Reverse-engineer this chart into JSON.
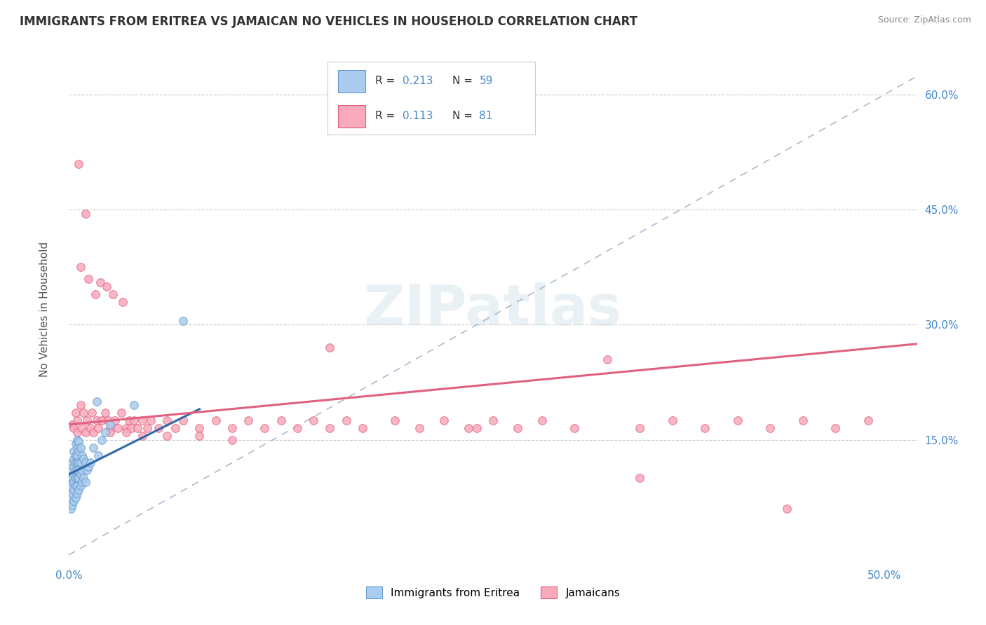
{
  "title": "IMMIGRANTS FROM ERITREA VS JAMAICAN NO VEHICLES IN HOUSEHOLD CORRELATION CHART",
  "source": "Source: ZipAtlas.com",
  "ylabel": "No Vehicles in Household",
  "xlim": [
    0.0,
    0.52
  ],
  "ylim": [
    -0.01,
    0.65
  ],
  "xticks": [
    0.0,
    0.1,
    0.2,
    0.3,
    0.4,
    0.5
  ],
  "xtick_labels": [
    "0.0%",
    "",
    "",
    "",
    "",
    "50.0%"
  ],
  "yticks_right": [
    0.15,
    0.3,
    0.45,
    0.6
  ],
  "ytick_labels_right": [
    "15.0%",
    "30.0%",
    "45.0%",
    "60.0%"
  ],
  "eritrea_color": "#aaccee",
  "eritrea_edge": "#6699cc",
  "jamaican_color": "#f8aabb",
  "jamaican_edge": "#e06080",
  "trend_eritrea_color": "#3366aa",
  "trend_jamaican_color": "#e06080",
  "ref_line_color": "#aabbcc",
  "grid_color": "#cccccc",
  "background_color": "#ffffff",
  "value_color": "#4488cc",
  "text_color": "#333333",
  "watermark_color": "#c8dce8",
  "watermark": "ZIPatlas",
  "legend_bottom": [
    "Immigrants from Eritrea",
    "Jamaicans"
  ],
  "eritrea_x": [
    0.001,
    0.001,
    0.001,
    0.002,
    0.002,
    0.002,
    0.002,
    0.002,
    0.002,
    0.003,
    0.003,
    0.003,
    0.003,
    0.003,
    0.003,
    0.003,
    0.004,
    0.004,
    0.004,
    0.004,
    0.004,
    0.004,
    0.004,
    0.005,
    0.005,
    0.005,
    0.005,
    0.005,
    0.005,
    0.005,
    0.005,
    0.006,
    0.006,
    0.006,
    0.006,
    0.006,
    0.006,
    0.007,
    0.007,
    0.007,
    0.007,
    0.008,
    0.008,
    0.008,
    0.009,
    0.009,
    0.01,
    0.01,
    0.011,
    0.012,
    0.013,
    0.015,
    0.017,
    0.018,
    0.02,
    0.022,
    0.025,
    0.04,
    0.07
  ],
  "eritrea_y": [
    0.06,
    0.075,
    0.09,
    0.065,
    0.08,
    0.095,
    0.1,
    0.11,
    0.12,
    0.07,
    0.085,
    0.095,
    0.105,
    0.115,
    0.125,
    0.135,
    0.075,
    0.09,
    0.1,
    0.11,
    0.12,
    0.13,
    0.145,
    0.08,
    0.09,
    0.1,
    0.11,
    0.12,
    0.13,
    0.14,
    0.15,
    0.085,
    0.1,
    0.11,
    0.12,
    0.135,
    0.148,
    0.09,
    0.105,
    0.12,
    0.14,
    0.095,
    0.11,
    0.13,
    0.1,
    0.125,
    0.095,
    0.12,
    0.11,
    0.115,
    0.12,
    0.14,
    0.2,
    0.13,
    0.15,
    0.16,
    0.17,
    0.195,
    0.305
  ],
  "jamaican_x": [
    0.002,
    0.003,
    0.004,
    0.005,
    0.005,
    0.006,
    0.007,
    0.007,
    0.008,
    0.009,
    0.01,
    0.01,
    0.011,
    0.012,
    0.013,
    0.014,
    0.015,
    0.016,
    0.017,
    0.018,
    0.019,
    0.02,
    0.022,
    0.023,
    0.024,
    0.025,
    0.027,
    0.028,
    0.03,
    0.032,
    0.033,
    0.035,
    0.037,
    0.038,
    0.04,
    0.042,
    0.045,
    0.048,
    0.05,
    0.055,
    0.06,
    0.065,
    0.07,
    0.08,
    0.09,
    0.1,
    0.11,
    0.12,
    0.13,
    0.14,
    0.15,
    0.16,
    0.17,
    0.18,
    0.2,
    0.215,
    0.23,
    0.245,
    0.26,
    0.275,
    0.29,
    0.31,
    0.33,
    0.35,
    0.37,
    0.39,
    0.41,
    0.43,
    0.45,
    0.47,
    0.49,
    0.16,
    0.25,
    0.35,
    0.44,
    0.025,
    0.035,
    0.045,
    0.06,
    0.08,
    0.1
  ],
  "jamaican_y": [
    0.17,
    0.165,
    0.185,
    0.16,
    0.175,
    0.51,
    0.195,
    0.375,
    0.165,
    0.185,
    0.16,
    0.445,
    0.175,
    0.36,
    0.165,
    0.185,
    0.16,
    0.34,
    0.175,
    0.165,
    0.355,
    0.175,
    0.185,
    0.35,
    0.175,
    0.165,
    0.34,
    0.175,
    0.165,
    0.185,
    0.33,
    0.165,
    0.175,
    0.165,
    0.175,
    0.165,
    0.175,
    0.165,
    0.175,
    0.165,
    0.175,
    0.165,
    0.175,
    0.165,
    0.175,
    0.165,
    0.175,
    0.165,
    0.175,
    0.165,
    0.175,
    0.165,
    0.175,
    0.165,
    0.175,
    0.165,
    0.175,
    0.165,
    0.175,
    0.165,
    0.175,
    0.165,
    0.255,
    0.165,
    0.175,
    0.165,
    0.175,
    0.165,
    0.175,
    0.165,
    0.175,
    0.27,
    0.165,
    0.1,
    0.06,
    0.16,
    0.16,
    0.155,
    0.155,
    0.155,
    0.15
  ]
}
